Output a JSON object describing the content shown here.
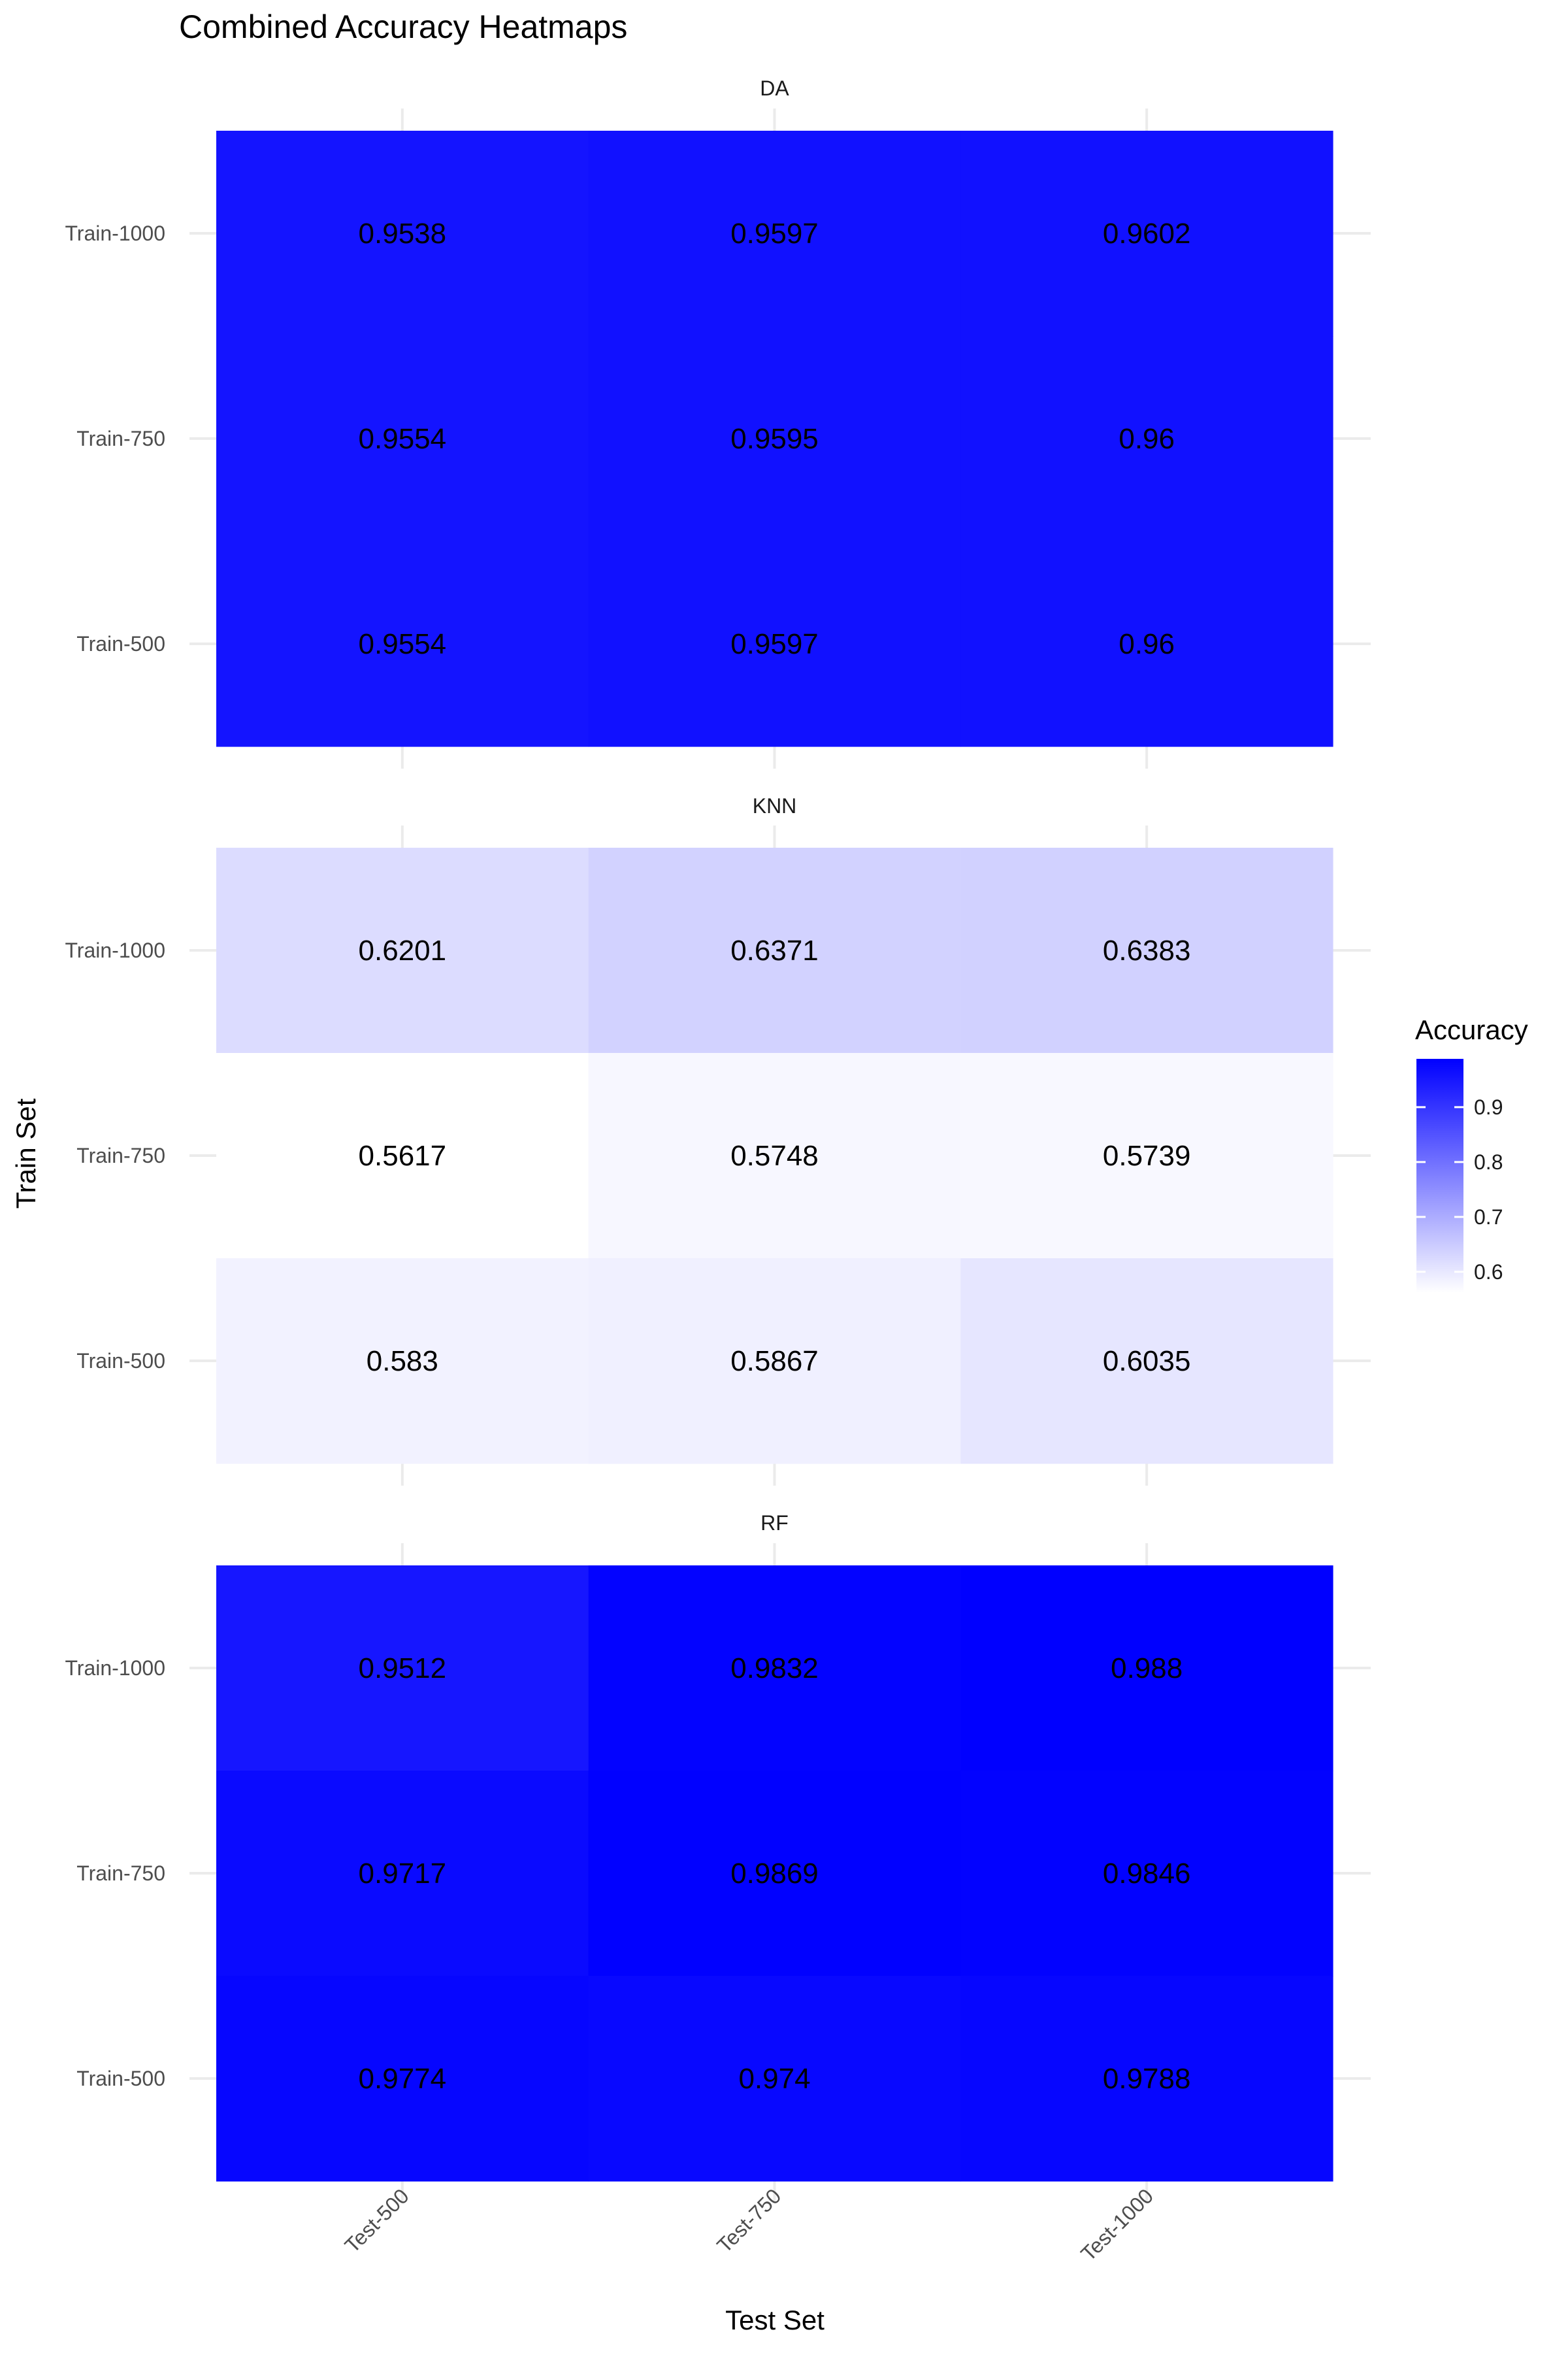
{
  "chart_data": {
    "type": "heatmap",
    "title": "Combined Accuracy Heatmaps",
    "xlabel": "Test Set",
    "ylabel": "Train Set",
    "x_categories": [
      "Test-500",
      "Test-750",
      "Test-1000"
    ],
    "y_categories": [
      "Train-1000",
      "Train-750",
      "Train-500"
    ],
    "legend": {
      "title": "Accuracy",
      "ticks": [
        0.6,
        0.7,
        0.8,
        0.9
      ],
      "range": [
        0.5617,
        0.988
      ],
      "low_color": "#ffffff",
      "high_color": "#0000ff",
      "placement": "right"
    },
    "grid": true,
    "facets": [
      {
        "name": "DA",
        "values": [
          [
            0.9538,
            0.9597,
            0.9602
          ],
          [
            0.9554,
            0.9595,
            0.96
          ],
          [
            0.9554,
            0.9597,
            0.96
          ]
        ]
      },
      {
        "name": "KNN",
        "values": [
          [
            0.6201,
            0.6371,
            0.6383
          ],
          [
            0.5617,
            0.5748,
            0.5739
          ],
          [
            0.583,
            0.5867,
            0.6035
          ]
        ]
      },
      {
        "name": "RF",
        "values": [
          [
            0.9512,
            0.9832,
            0.988
          ],
          [
            0.9717,
            0.9869,
            0.9846
          ],
          [
            0.9774,
            0.974,
            0.9788
          ]
        ]
      }
    ]
  }
}
